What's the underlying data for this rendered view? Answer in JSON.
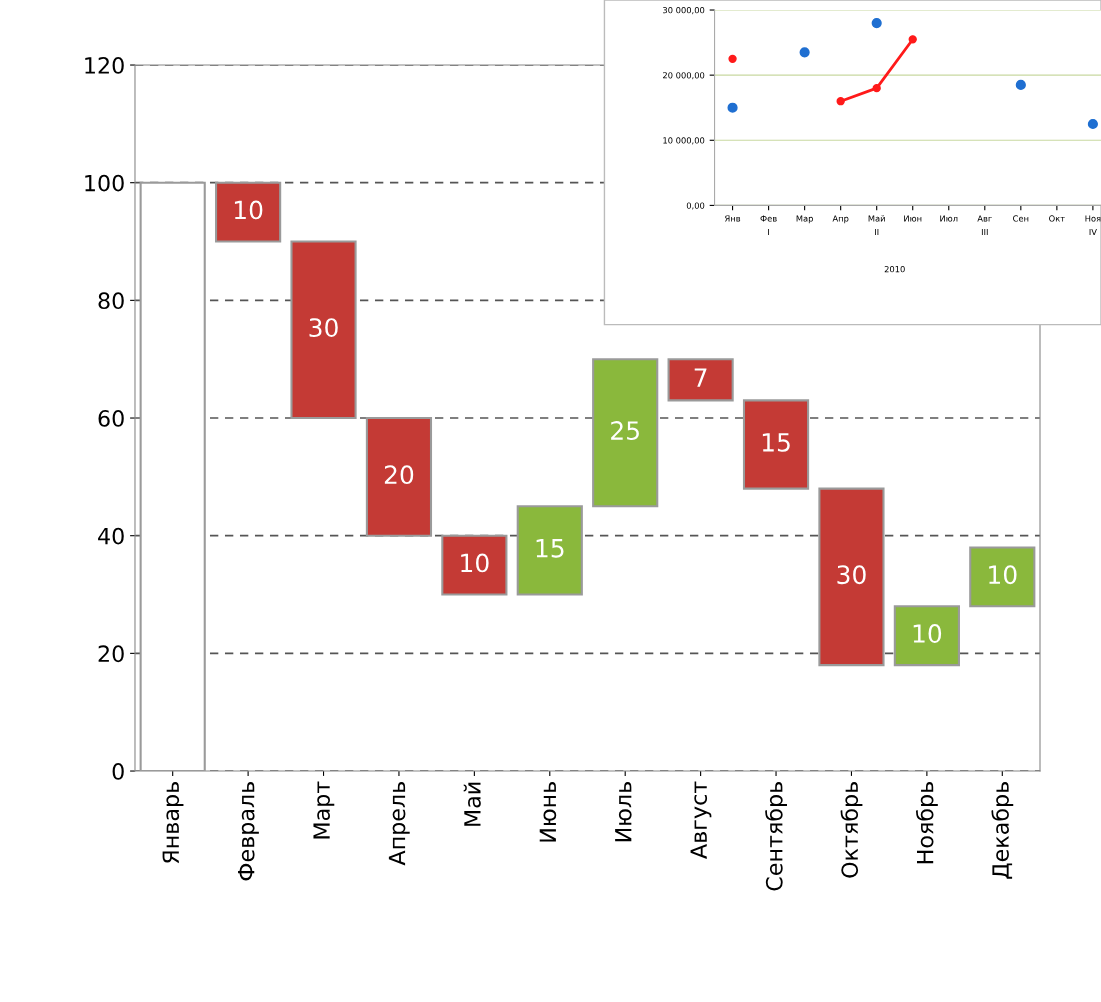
{
  "chart_data": [
    {
      "type": "bar",
      "categories": [
        "Январь",
        "Февраль",
        "Март",
        "Апрель",
        "Май",
        "Июнь",
        "Июль",
        "Август",
        "Сентябрь",
        "Октябрь",
        "Ноябрь",
        "Декабрь"
      ],
      "values": [
        100,
        10,
        30,
        20,
        10,
        15,
        25,
        7,
        15,
        30,
        10,
        10
      ],
      "base": [
        0,
        90,
        60,
        40,
        30,
        30,
        45,
        63,
        48,
        18,
        18,
        28
      ],
      "colors": [
        "#ffffff",
        "#c43a35",
        "#c43a35",
        "#c43a35",
        "#c43a35",
        "#8ab83c",
        "#8ab83c",
        "#c43a35",
        "#c43a35",
        "#c43a35",
        "#8ab83c",
        "#8ab83c"
      ],
      "value_labels": [
        null,
        "10",
        "30",
        "20",
        "10",
        "15",
        "25",
        "7",
        "15",
        "30",
        "10",
        "10"
      ],
      "ylim": [
        0,
        120
      ],
      "yticks": [
        0,
        20,
        40,
        60,
        80,
        100,
        120
      ],
      "grid": "y",
      "legend": false
    },
    {
      "type": "line",
      "categories": [
        "Янв",
        "Фев",
        "Мар",
        "Апр",
        "Май",
        "Июн",
        "Июл",
        "Авг",
        "Сен",
        "Окт",
        "Ноя"
      ],
      "series": [
        {
          "color": "#ff1a1a",
          "values": [
            22500,
            null,
            null,
            16000,
            18000,
            25500,
            null,
            null,
            null,
            null,
            null
          ]
        },
        {
          "type": "scatter",
          "color": "#1f6fd1",
          "values": [
            15000,
            null,
            23500,
            null,
            28000,
            null,
            null,
            null,
            18500,
            null,
            12500
          ]
        }
      ],
      "marker": "circle",
      "ylim": [
        0,
        30000
      ],
      "yticks": [
        {
          "value": 0,
          "label": "0,00"
        },
        {
          "value": 10000,
          "label": "10 000,00"
        },
        {
          "value": 20000,
          "label": "20 000,00"
        },
        {
          "value": 30000,
          "label": "30 000,00"
        }
      ],
      "grid": "y",
      "legend": false,
      "annotations": [
        "I",
        "II",
        "III",
        "IV",
        "2010"
      ]
    }
  ]
}
